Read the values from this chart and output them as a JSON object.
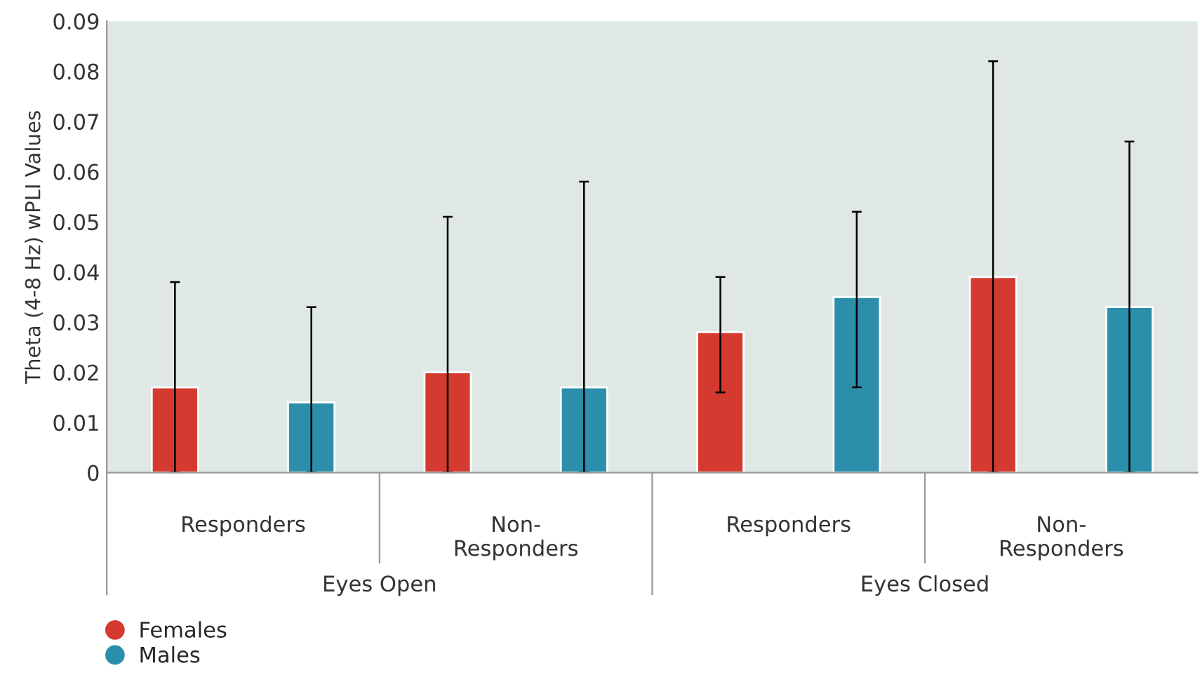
{
  "chart_data": {
    "type": "bar",
    "ylabel": "Theta (4-8 Hz) wPLI Values",
    "categories": [
      "Responders",
      "Non-\nResponders",
      "Responders",
      "Non-\nResponders"
    ],
    "annotations": [
      "Eyes Open",
      "Eyes Closed"
    ],
    "series": [
      {
        "name": "Females",
        "color": "#d43a2f",
        "values": [
          0.017,
          0.02,
          0.028,
          0.039
        ],
        "errors": [
          [
            0,
            0.038
          ],
          [
            0,
            0.051
          ],
          [
            0.016,
            0.039
          ],
          [
            0,
            0.082
          ]
        ]
      },
      {
        "name": "Males",
        "color": "#2b8fab",
        "values": [
          0.014,
          0.017,
          0.035,
          0.033
        ],
        "errors": [
          [
            0,
            0.033
          ],
          [
            0,
            0.058
          ],
          [
            0.017,
            0.052
          ],
          [
            0,
            0.066
          ]
        ]
      }
    ],
    "ylim": [
      0,
      0.09
    ],
    "yticks": [
      0,
      0.01,
      0.02,
      0.03,
      0.04,
      0.05,
      0.06,
      0.07,
      0.08,
      0.09
    ],
    "grid": false,
    "legend": "bottom left",
    "marker": "circle"
  }
}
